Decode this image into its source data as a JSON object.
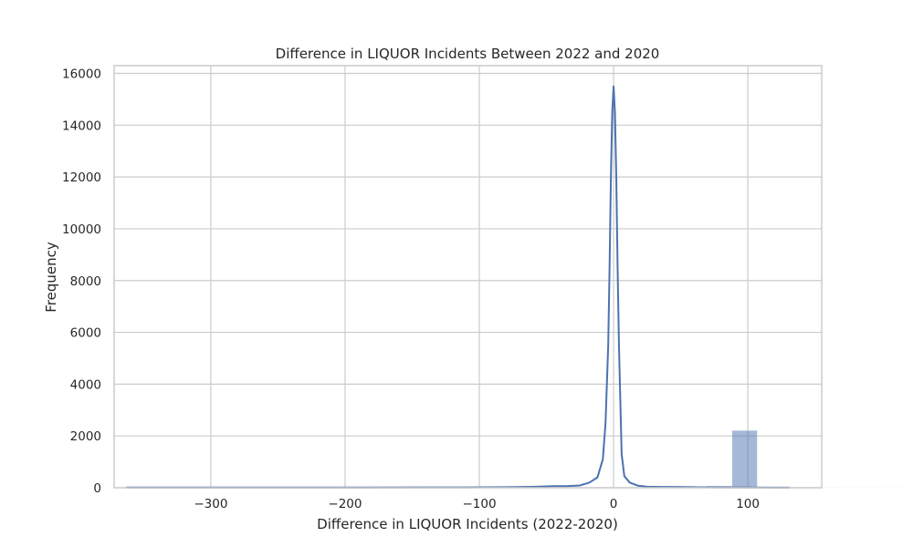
{
  "chart_data": {
    "type": "bar",
    "title": "Difference in LIQUOR Incidents Between 2022 and 2020",
    "xlabel": "Difference in LIQUOR Incidents (2022-2020)",
    "ylabel": "Frequency",
    "xlim": [
      -372,
      155
    ],
    "ylim": [
      0,
      16300
    ],
    "xticks": [
      -300,
      -200,
      -100,
      0,
      100
    ],
    "xtick_labels": [
      "−300",
      "−200",
      "−100",
      "0",
      "100"
    ],
    "yticks": [
      0,
      2000,
      4000,
      6000,
      8000,
      10000,
      12000,
      14000,
      16000
    ],
    "ytick_labels": [
      "0",
      "2000",
      "4000",
      "6000",
      "8000",
      "10000",
      "12000",
      "14000",
      "16000"
    ],
    "grid": true,
    "colors": {
      "series": "#4c72b0",
      "grid": "#cccccc",
      "text": "#262626"
    },
    "histogram": {
      "bin_start": -363,
      "bin_width": 18.8,
      "counts": [
        5,
        2,
        1,
        1,
        1,
        1,
        1,
        1,
        1,
        1,
        1,
        3,
        3,
        2,
        2,
        2,
        3,
        4,
        6,
        8,
        10,
        14,
        30,
        70,
        2210,
        30,
        12,
        6,
        5,
        3,
        2,
        1,
        1,
        1,
        1,
        1,
        1,
        1,
        1,
        1,
        1,
        1,
        1,
        1,
        1,
        1,
        1,
        1,
        1,
        1
      ]
    },
    "kde": {
      "x": [
        -363,
        -330,
        -300,
        -260,
        -220,
        -180,
        -140,
        -110,
        -80,
        -60,
        -45,
        -35,
        -25,
        -18,
        -12,
        -8,
        -6,
        -4,
        -3,
        -2,
        -1,
        0,
        1,
        2,
        3,
        4,
        6,
        8,
        12,
        18,
        25,
        35,
        45,
        60,
        80,
        100,
        131
      ],
      "y": [
        10,
        8,
        7,
        7,
        8,
        10,
        12,
        15,
        22,
        35,
        60,
        60,
        90,
        200,
        400,
        1100,
        2500,
        5500,
        8500,
        12000,
        14500,
        15500,
        14500,
        12000,
        8500,
        5500,
        1300,
        450,
        200,
        80,
        40,
        30,
        30,
        20,
        12,
        8,
        5
      ]
    }
  }
}
